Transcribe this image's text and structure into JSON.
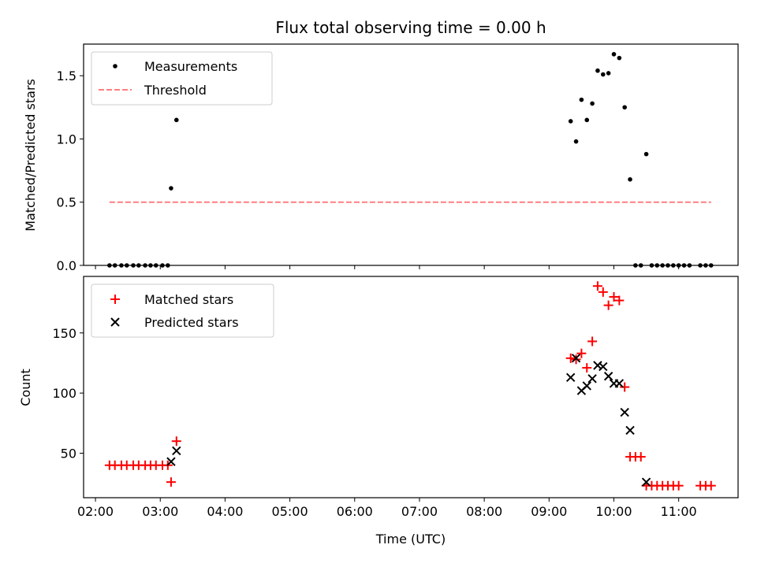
{
  "chart_data": [
    {
      "type": "scatter",
      "title": "Flux total observing time = 0.00 h",
      "ylabel": "Matched/Predicted stars",
      "ylim": [
        0,
        1.75
      ],
      "yticks": [
        0.0,
        0.5,
        1.0,
        1.5
      ],
      "ytick_labels": [
        "0.0",
        "0.5",
        "1.0",
        "1.5"
      ],
      "xlim": [
        "01:49",
        "11:55"
      ],
      "legend": {
        "placement": "top-left",
        "entries": [
          "Measurements",
          "Threshold"
        ]
      },
      "series": [
        {
          "name": "Measurements",
          "color": "#000000",
          "marker": "dot",
          "points": [
            [
              "02:13",
              0
            ],
            [
              "02:18",
              0
            ],
            [
              "02:24",
              0
            ],
            [
              "02:29",
              0
            ],
            [
              "02:35",
              0
            ],
            [
              "02:40",
              0
            ],
            [
              "02:46",
              0
            ],
            [
              "02:51",
              0
            ],
            [
              "02:56",
              0
            ],
            [
              "03:02",
              0
            ],
            [
              "03:07",
              0
            ],
            [
              "03:10",
              0.61
            ],
            [
              "03:15",
              1.15
            ],
            [
              "09:20",
              1.14
            ],
            [
              "09:25",
              0.98
            ],
            [
              "09:30",
              1.31
            ],
            [
              "09:35",
              1.15
            ],
            [
              "09:40",
              1.28
            ],
            [
              "09:45",
              1.54
            ],
            [
              "09:50",
              1.51
            ],
            [
              "09:55",
              1.52
            ],
            [
              "10:00",
              1.67
            ],
            [
              "10:05",
              1.64
            ],
            [
              "10:10",
              1.25
            ],
            [
              "10:15",
              0.68
            ],
            [
              "10:20",
              0
            ],
            [
              "10:25",
              0
            ],
            [
              "10:30",
              0.88
            ],
            [
              "10:35",
              0
            ],
            [
              "10:40",
              0
            ],
            [
              "10:45",
              0
            ],
            [
              "10:50",
              0
            ],
            [
              "10:55",
              0
            ],
            [
              "11:00",
              0
            ],
            [
              "11:05",
              0
            ],
            [
              "11:10",
              0
            ],
            [
              "11:20",
              0
            ],
            [
              "11:25",
              0
            ],
            [
              "11:30",
              0
            ]
          ]
        },
        {
          "name": "Threshold",
          "color": "#ff7f7f",
          "style": "dashed",
          "points": [
            [
              "02:13",
              0.5
            ],
            [
              "11:30",
              0.5
            ]
          ]
        }
      ]
    },
    {
      "type": "scatter",
      "xlabel": "Time (UTC)",
      "ylabel": "Count",
      "ylim": [
        13,
        197
      ],
      "yticks": [
        50,
        100,
        150
      ],
      "ytick_labels": [
        "50",
        "100",
        "150"
      ],
      "xlim": [
        "01:49",
        "11:55"
      ],
      "xticks": [
        "02:00",
        "03:00",
        "04:00",
        "05:00",
        "06:00",
        "07:00",
        "08:00",
        "09:00",
        "10:00",
        "11:00"
      ],
      "xtick_labels": [
        "02:00",
        "03:00",
        "04:00",
        "05:00",
        "06:00",
        "07:00",
        "08:00",
        "09:00",
        "10:00",
        "11:00"
      ],
      "legend": {
        "placement": "top-left",
        "entries": [
          "Matched stars",
          "Predicted stars"
        ]
      },
      "series": [
        {
          "name": "Matched stars",
          "color": "#ff0000",
          "marker": "plus",
          "points": [
            [
              "02:13",
              40
            ],
            [
              "02:18",
              40
            ],
            [
              "02:24",
              40
            ],
            [
              "02:29",
              40
            ],
            [
              "02:35",
              40
            ],
            [
              "02:40",
              40
            ],
            [
              "02:46",
              40
            ],
            [
              "02:51",
              40
            ],
            [
              "02:56",
              40
            ],
            [
              "03:02",
              40
            ],
            [
              "03:07",
              40
            ],
            [
              "03:10",
              26
            ],
            [
              "03:15",
              60
            ],
            [
              "09:20",
              129
            ],
            [
              "09:25",
              128
            ],
            [
              "09:30",
              133
            ],
            [
              "09:35",
              121
            ],
            [
              "09:40",
              143
            ],
            [
              "09:45",
              189
            ],
            [
              "09:50",
              184
            ],
            [
              "09:55",
              173
            ],
            [
              "10:00",
              180
            ],
            [
              "10:05",
              177
            ],
            [
              "10:10",
              105
            ],
            [
              "10:15",
              47
            ],
            [
              "10:20",
              47
            ],
            [
              "10:25",
              47
            ],
            [
              "10:30",
              23
            ],
            [
              "10:35",
              23
            ],
            [
              "10:40",
              23
            ],
            [
              "10:45",
              23
            ],
            [
              "10:50",
              23
            ],
            [
              "10:55",
              23
            ],
            [
              "11:00",
              23
            ],
            [
              "11:20",
              23
            ],
            [
              "11:25",
              23
            ],
            [
              "11:30",
              23
            ]
          ]
        },
        {
          "name": "Predicted stars",
          "color": "#000000",
          "marker": "x",
          "points": [
            [
              "03:10",
              43
            ],
            [
              "03:15",
              52
            ],
            [
              "09:20",
              113
            ],
            [
              "09:25",
              129
            ],
            [
              "09:30",
              102
            ],
            [
              "09:35",
              106
            ],
            [
              "09:40",
              112
            ],
            [
              "09:45",
              123
            ],
            [
              "09:50",
              122
            ],
            [
              "09:55",
              114
            ],
            [
              "10:00",
              108
            ],
            [
              "10:05",
              108
            ],
            [
              "10:10",
              84
            ],
            [
              "10:15",
              69
            ],
            [
              "10:30",
              26
            ]
          ]
        }
      ]
    }
  ]
}
